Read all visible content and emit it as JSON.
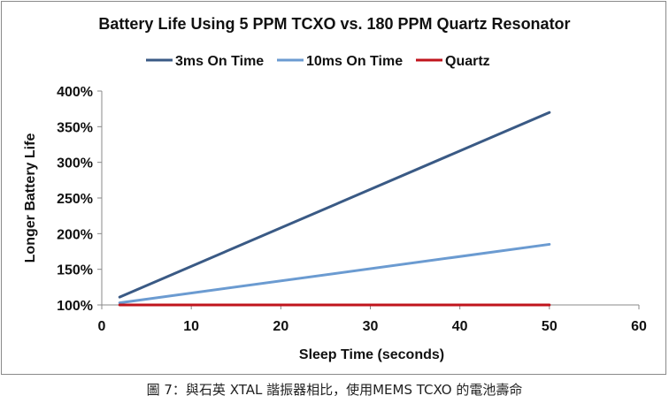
{
  "chart_data": {
    "type": "line",
    "title": "Battery Life Using 5 PPM TCXO vs. 180 PPM Quartz Resonator",
    "xlabel": "Sleep Time (seconds)",
    "ylabel": "Longer Battery Life",
    "xlim": [
      0,
      60
    ],
    "ylim": [
      100,
      400
    ],
    "xticks": [
      "0",
      "10",
      "20",
      "30",
      "40",
      "50",
      "60"
    ],
    "yticks": [
      "100%",
      "150%",
      "200%",
      "250%",
      "300%",
      "350%",
      "400%"
    ],
    "grid": false,
    "legend_position": "top",
    "series": [
      {
        "name": "3ms On Time",
        "color": "#3a5a85",
        "x": [
          2,
          50
        ],
        "y": [
          111,
          370
        ]
      },
      {
        "name": "10ms On Time",
        "color": "#6b9bd1",
        "x": [
          2,
          50
        ],
        "y": [
          103,
          185
        ]
      },
      {
        "name": "Quartz",
        "color": "#c0141c",
        "x": [
          2,
          50
        ],
        "y": [
          100,
          100
        ]
      }
    ]
  },
  "caption": "圖 7：與石英 XTAL 諧振器相比，使用MEMS TCXO 的電池壽命"
}
